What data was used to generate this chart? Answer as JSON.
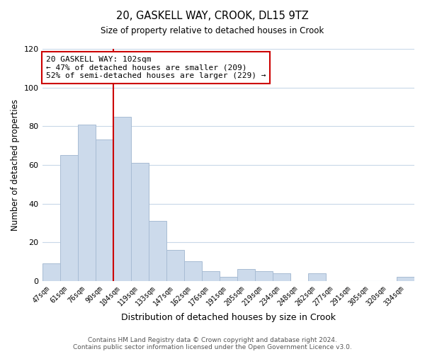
{
  "title": "20, GASKELL WAY, CROOK, DL15 9TZ",
  "subtitle": "Size of property relative to detached houses in Crook",
  "xlabel": "Distribution of detached houses by size in Crook",
  "ylabel": "Number of detached properties",
  "categories": [
    "47sqm",
    "61sqm",
    "76sqm",
    "90sqm",
    "104sqm",
    "119sqm",
    "133sqm",
    "147sqm",
    "162sqm",
    "176sqm",
    "191sqm",
    "205sqm",
    "219sqm",
    "234sqm",
    "248sqm",
    "262sqm",
    "277sqm",
    "291sqm",
    "305sqm",
    "320sqm",
    "334sqm"
  ],
  "values": [
    9,
    65,
    81,
    73,
    85,
    61,
    31,
    16,
    10,
    5,
    2,
    6,
    5,
    4,
    0,
    4,
    0,
    0,
    0,
    0,
    2
  ],
  "bar_color": "#ccdaeb",
  "bar_edge_color": "#a8bcd4",
  "highlight_index": 4,
  "highlight_line_color": "#cc0000",
  "annotation_text": "20 GASKELL WAY: 102sqm\n← 47% of detached houses are smaller (209)\n52% of semi-detached houses are larger (229) →",
  "annotation_box_color": "#ffffff",
  "annotation_box_edge_color": "#cc0000",
  "ylim": [
    0,
    120
  ],
  "yticks": [
    0,
    20,
    40,
    60,
    80,
    100,
    120
  ],
  "footer_text": "Contains HM Land Registry data © Crown copyright and database right 2024.\nContains public sector information licensed under the Open Government Licence v3.0.",
  "background_color": "#ffffff",
  "grid_color": "#c8d8e8"
}
